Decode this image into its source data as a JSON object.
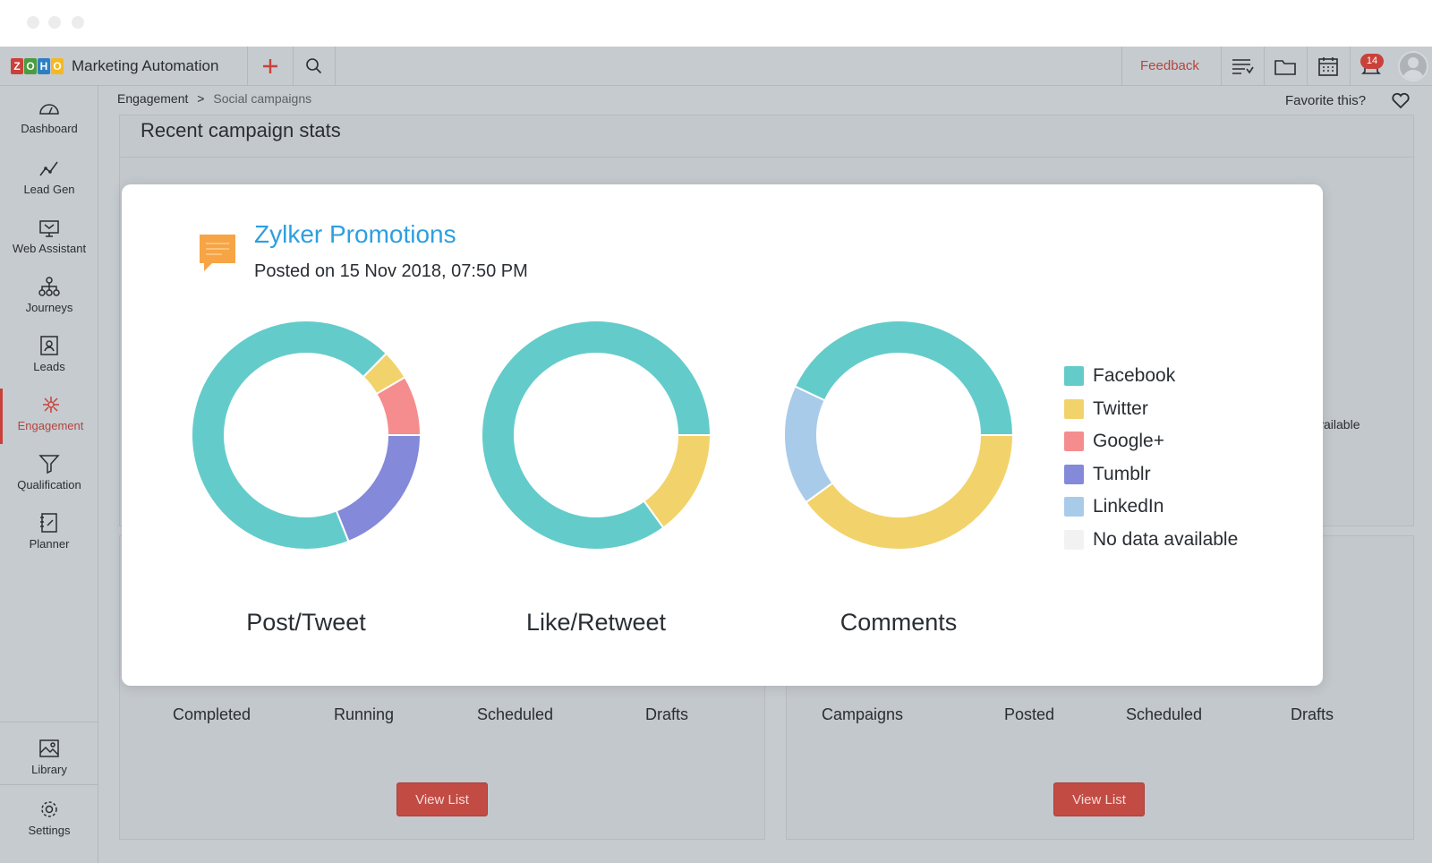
{
  "app": {
    "brand_letters": [
      "Z",
      "O",
      "H",
      "O"
    ],
    "brand_colors": [
      "#c9413a",
      "#4a9d3f",
      "#2d7fc1",
      "#f2b924"
    ],
    "name": "Marketing Automation"
  },
  "toolbar": {
    "add_icon": "plus-icon",
    "search_icon": "search-icon",
    "feedback_label": "Feedback",
    "notification_count": "14"
  },
  "sidebar": {
    "items": [
      {
        "label": "Dashboard",
        "icon": "gauge-icon"
      },
      {
        "label": "Lead Gen",
        "icon": "chart-icon"
      },
      {
        "label": "Web Assistant",
        "icon": "monitor-icon"
      },
      {
        "label": "Journeys",
        "icon": "network-icon"
      },
      {
        "label": "Leads",
        "icon": "contact-icon"
      },
      {
        "label": "Engagement",
        "icon": "engagement-icon",
        "active": true
      },
      {
        "label": "Qualification",
        "icon": "funnel-icon"
      },
      {
        "label": "Planner",
        "icon": "planner-icon"
      }
    ],
    "bottom": [
      {
        "label": "Library",
        "icon": "image-icon"
      },
      {
        "label": "Settings",
        "icon": "gear-icon"
      }
    ]
  },
  "breadcrumb": {
    "parent": "Engagement",
    "separator": ">",
    "current": "Social campaigns"
  },
  "favorite_label": "Favorite this?",
  "main": {
    "section_title": "Recent campaign stats",
    "ghost_text": "vailable"
  },
  "cards": {
    "left": {
      "stats": [
        "Completed",
        "Running",
        "Scheduled",
        "Drafts"
      ],
      "button": "View List"
    },
    "right": {
      "stats": [
        "Campaigns",
        "Posted",
        "Scheduled",
        "Drafts"
      ],
      "button": "View List"
    }
  },
  "modal": {
    "title": "Zylker Promotions",
    "subtitle": "Posted on 15 Nov 2018, 07:50 PM"
  },
  "legend": [
    {
      "name": "Facebook",
      "color": "#64cbcb"
    },
    {
      "name": "Twitter",
      "color": "#f2d36b"
    },
    {
      "name": "Google+",
      "color": "#f58c8e"
    },
    {
      "name": "Tumblr",
      "color": "#8489d9"
    },
    {
      "name": "LinkedIn",
      "color": "#a9cbea"
    },
    {
      "name": "No data available",
      "color": "#f2f2f2"
    }
  ],
  "chart_data": [
    {
      "type": "pie",
      "variant": "donut",
      "title": "Post/Tweet",
      "slices": [
        {
          "name": "Tumblr",
          "value": 18
        },
        {
          "name": "Facebook",
          "value": 65
        },
        {
          "name": "Twitter",
          "value": 4
        },
        {
          "name": "Google+",
          "value": 8
        }
      ]
    },
    {
      "type": "pie",
      "variant": "donut",
      "title": "Like/Retweet",
      "slices": [
        {
          "name": "Twitter",
          "value": 15
        },
        {
          "name": "Facebook",
          "value": 85
        }
      ]
    },
    {
      "type": "pie",
      "variant": "donut",
      "title": "Comments",
      "slices": [
        {
          "name": "Twitter",
          "value": 40
        },
        {
          "name": "LinkedIn",
          "value": 17
        },
        {
          "name": "Facebook",
          "value": 43
        }
      ]
    }
  ]
}
